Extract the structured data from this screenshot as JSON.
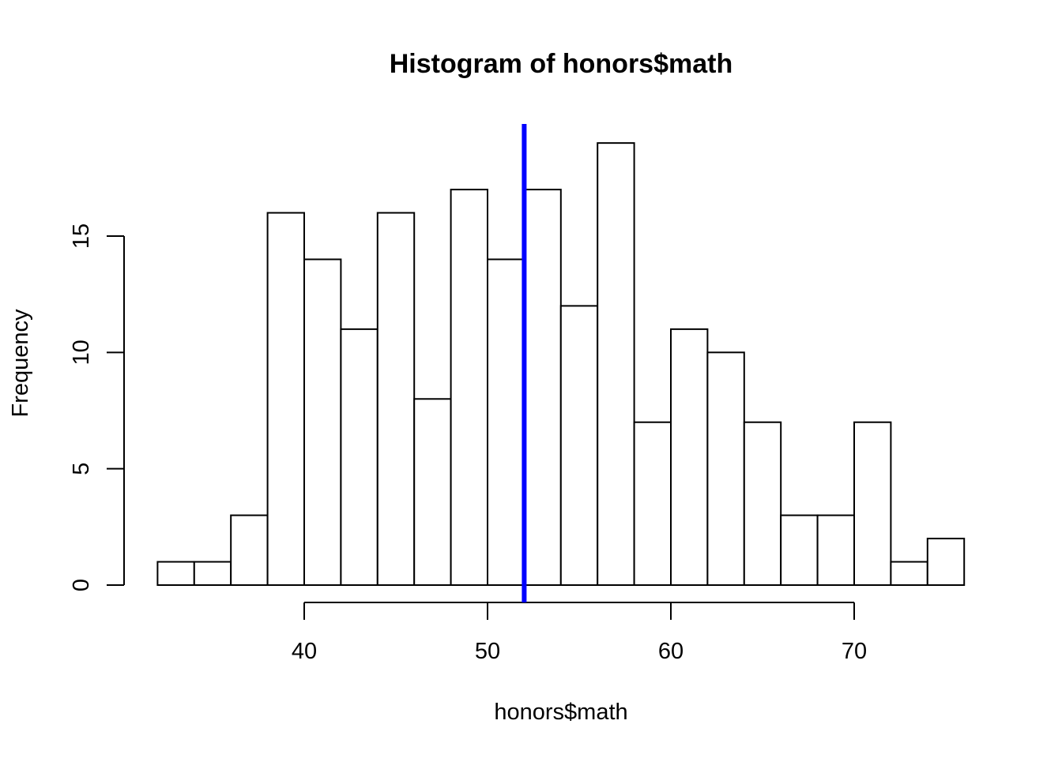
{
  "chart_data": {
    "type": "bar",
    "subtype": "histogram",
    "title": "Histogram of honors$math",
    "xlabel": "honors$math",
    "ylabel": "Frequency",
    "bin_edges": [
      32,
      34,
      36,
      38,
      40,
      42,
      44,
      46,
      48,
      50,
      52,
      54,
      56,
      58,
      60,
      62,
      64,
      66,
      68,
      70,
      72,
      74,
      76
    ],
    "values": [
      1,
      1,
      3,
      16,
      14,
      11,
      16,
      8,
      17,
      14,
      17,
      12,
      19,
      7,
      11,
      10,
      7,
      3,
      3,
      7,
      1,
      2
    ],
    "x_ticks": [
      40,
      50,
      60,
      70
    ],
    "y_ticks": [
      0,
      5,
      10,
      15
    ],
    "xlim": [
      40,
      70
    ],
    "ylim": [
      0,
      19
    ],
    "reference_line": {
      "x": 52,
      "color": "#0000ff"
    },
    "bar_fill": "#ffffff",
    "bar_stroke": "#000000",
    "grid": false,
    "legend": false
  }
}
